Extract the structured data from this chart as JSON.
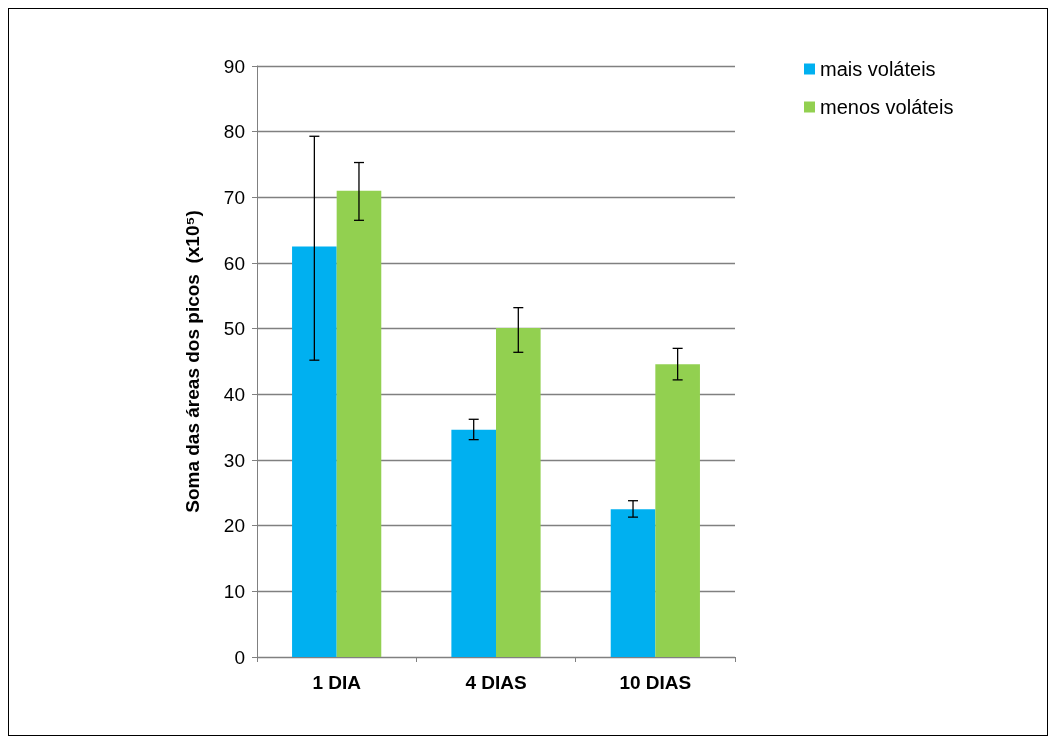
{
  "chart_data": {
    "type": "bar",
    "ylabel": "Soma das áreas dos picos  (x10⁵)",
    "categories": [
      "1 DIA",
      "4 DIAS",
      "10 DIAS"
    ],
    "series": [
      {
        "name": "mais voláteis",
        "color": "#00b0f0",
        "values": [
          62.5,
          34.6,
          22.5
        ],
        "errors": [
          [
            45.2,
            79.3
          ],
          [
            33.1,
            36.2
          ],
          [
            21.3,
            23.8
          ]
        ]
      },
      {
        "name": "menos voláteis",
        "color": "#92d050",
        "values": [
          71.0,
          50.1,
          44.6
        ],
        "errors": [
          [
            66.5,
            75.3
          ],
          [
            46.4,
            53.2
          ],
          [
            42.2,
            47.0
          ]
        ]
      }
    ],
    "ylim": [
      0,
      90
    ],
    "yticks": [
      0,
      10,
      20,
      30,
      40,
      50,
      60,
      70,
      80,
      90
    ],
    "grid": "y",
    "legend": "top right"
  }
}
